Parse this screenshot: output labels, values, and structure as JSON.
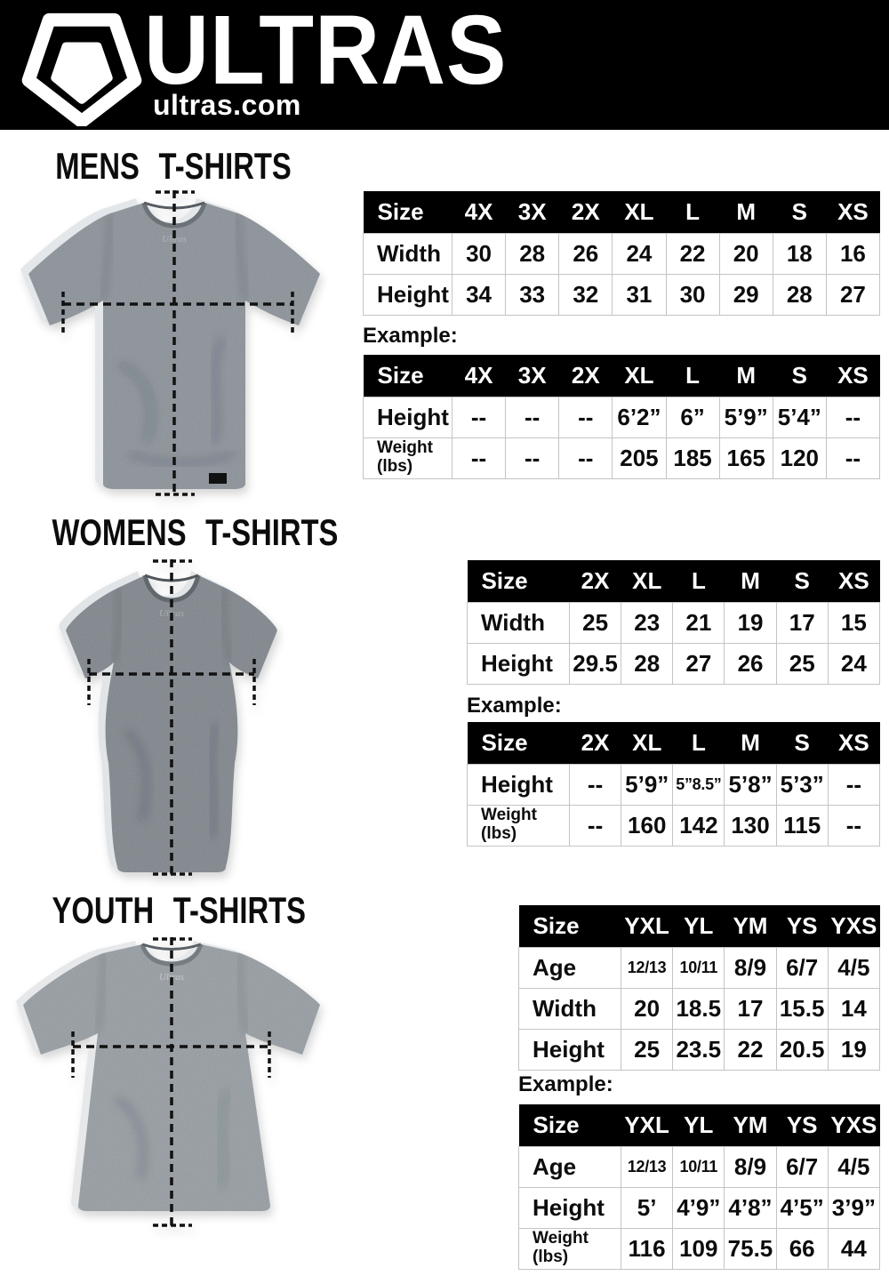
{
  "header": {
    "brand": "ULTRAS",
    "site": "ultras.com",
    "logo_icon": "pentagon-crest-icon"
  },
  "colors": {
    "header_bg": "#000000",
    "table_header_bg": "#000000",
    "table_border": "#c4c4c4",
    "mens_shirt_grey": "#8b9299",
    "womens_shirt_grey": "#7f868c",
    "youth_shirt_grey": "#969da2"
  },
  "sections": [
    {
      "title": "MENS T-SHIRTS",
      "example_label": "Example:",
      "size_table": {
        "columns": [
          "Size",
          "4X",
          "3X",
          "2X",
          "XL",
          "L",
          "M",
          "S",
          "XS"
        ],
        "rows": [
          {
            "label": "Width",
            "values": [
              "30",
              "28",
              "26",
              "24",
              "22",
              "20",
              "18",
              "16"
            ]
          },
          {
            "label": "Height",
            "values": [
              "34",
              "33",
              "32",
              "31",
              "30",
              "29",
              "28",
              "27"
            ]
          }
        ]
      },
      "example_table": {
        "columns": [
          "Size",
          "4X",
          "3X",
          "2X",
          "XL",
          "L",
          "M",
          "S",
          "XS"
        ],
        "rows": [
          {
            "label": "Height",
            "values": [
              "--",
              "--",
              "--",
              "6’2”",
              "6”",
              "5’9”",
              "5’4”",
              "--"
            ]
          },
          {
            "label": "Weight\n(lbs)",
            "values": [
              "--",
              "--",
              "--",
              "205",
              "185",
              "165",
              "120",
              "--"
            ]
          }
        ]
      }
    },
    {
      "title": "WOMENS T-SHIRTS",
      "example_label": "Example:",
      "size_table": {
        "columns": [
          "Size",
          "2X",
          "XL",
          "L",
          "M",
          "S",
          "XS"
        ],
        "rows": [
          {
            "label": "Width",
            "values": [
              "25",
              "23",
              "21",
              "19",
              "17",
              "15"
            ]
          },
          {
            "label": "Height",
            "values": [
              "29.5",
              "28",
              "27",
              "26",
              "25",
              "24"
            ]
          }
        ]
      },
      "example_table": {
        "columns": [
          "Size",
          "2X",
          "XL",
          "L",
          "M",
          "S",
          "XS"
        ],
        "rows": [
          {
            "label": "Height",
            "values": [
              "--",
              "5’9”",
              "5”8.5”",
              "5’8”",
              "5’3”",
              "--"
            ]
          },
          {
            "label": "Weight\n(lbs)",
            "values": [
              "--",
              "160",
              "142",
              "130",
              "115",
              "--"
            ]
          }
        ]
      }
    },
    {
      "title": "YOUTH T-SHIRTS",
      "example_label": "Example:",
      "size_table": {
        "columns": [
          "Size",
          "YXL",
          "YL",
          "YM",
          "YS",
          "YXS"
        ],
        "rows": [
          {
            "label": "Age",
            "values": [
              "12/13",
              "10/11",
              "8/9",
              "6/7",
              "4/5"
            ]
          },
          {
            "label": "Width",
            "values": [
              "20",
              "18.5",
              "17",
              "15.5",
              "14"
            ]
          },
          {
            "label": "Height",
            "values": [
              "25",
              "23.5",
              "22",
              "20.5",
              "19"
            ]
          }
        ]
      },
      "example_table": {
        "columns": [
          "Size",
          "YXL",
          "YL",
          "YM",
          "YS",
          "YXS"
        ],
        "rows": [
          {
            "label": "Age",
            "values": [
              "12/13",
              "10/11",
              "8/9",
              "6/7",
              "4/5"
            ]
          },
          {
            "label": "Height",
            "values": [
              "5’",
              "4’9”",
              "4’8”",
              "4’5”",
              "3’9”"
            ]
          },
          {
            "label": "Weight\n(lbs)",
            "values": [
              "116",
              "109",
              "75.5",
              "66",
              "44"
            ]
          }
        ]
      }
    }
  ]
}
